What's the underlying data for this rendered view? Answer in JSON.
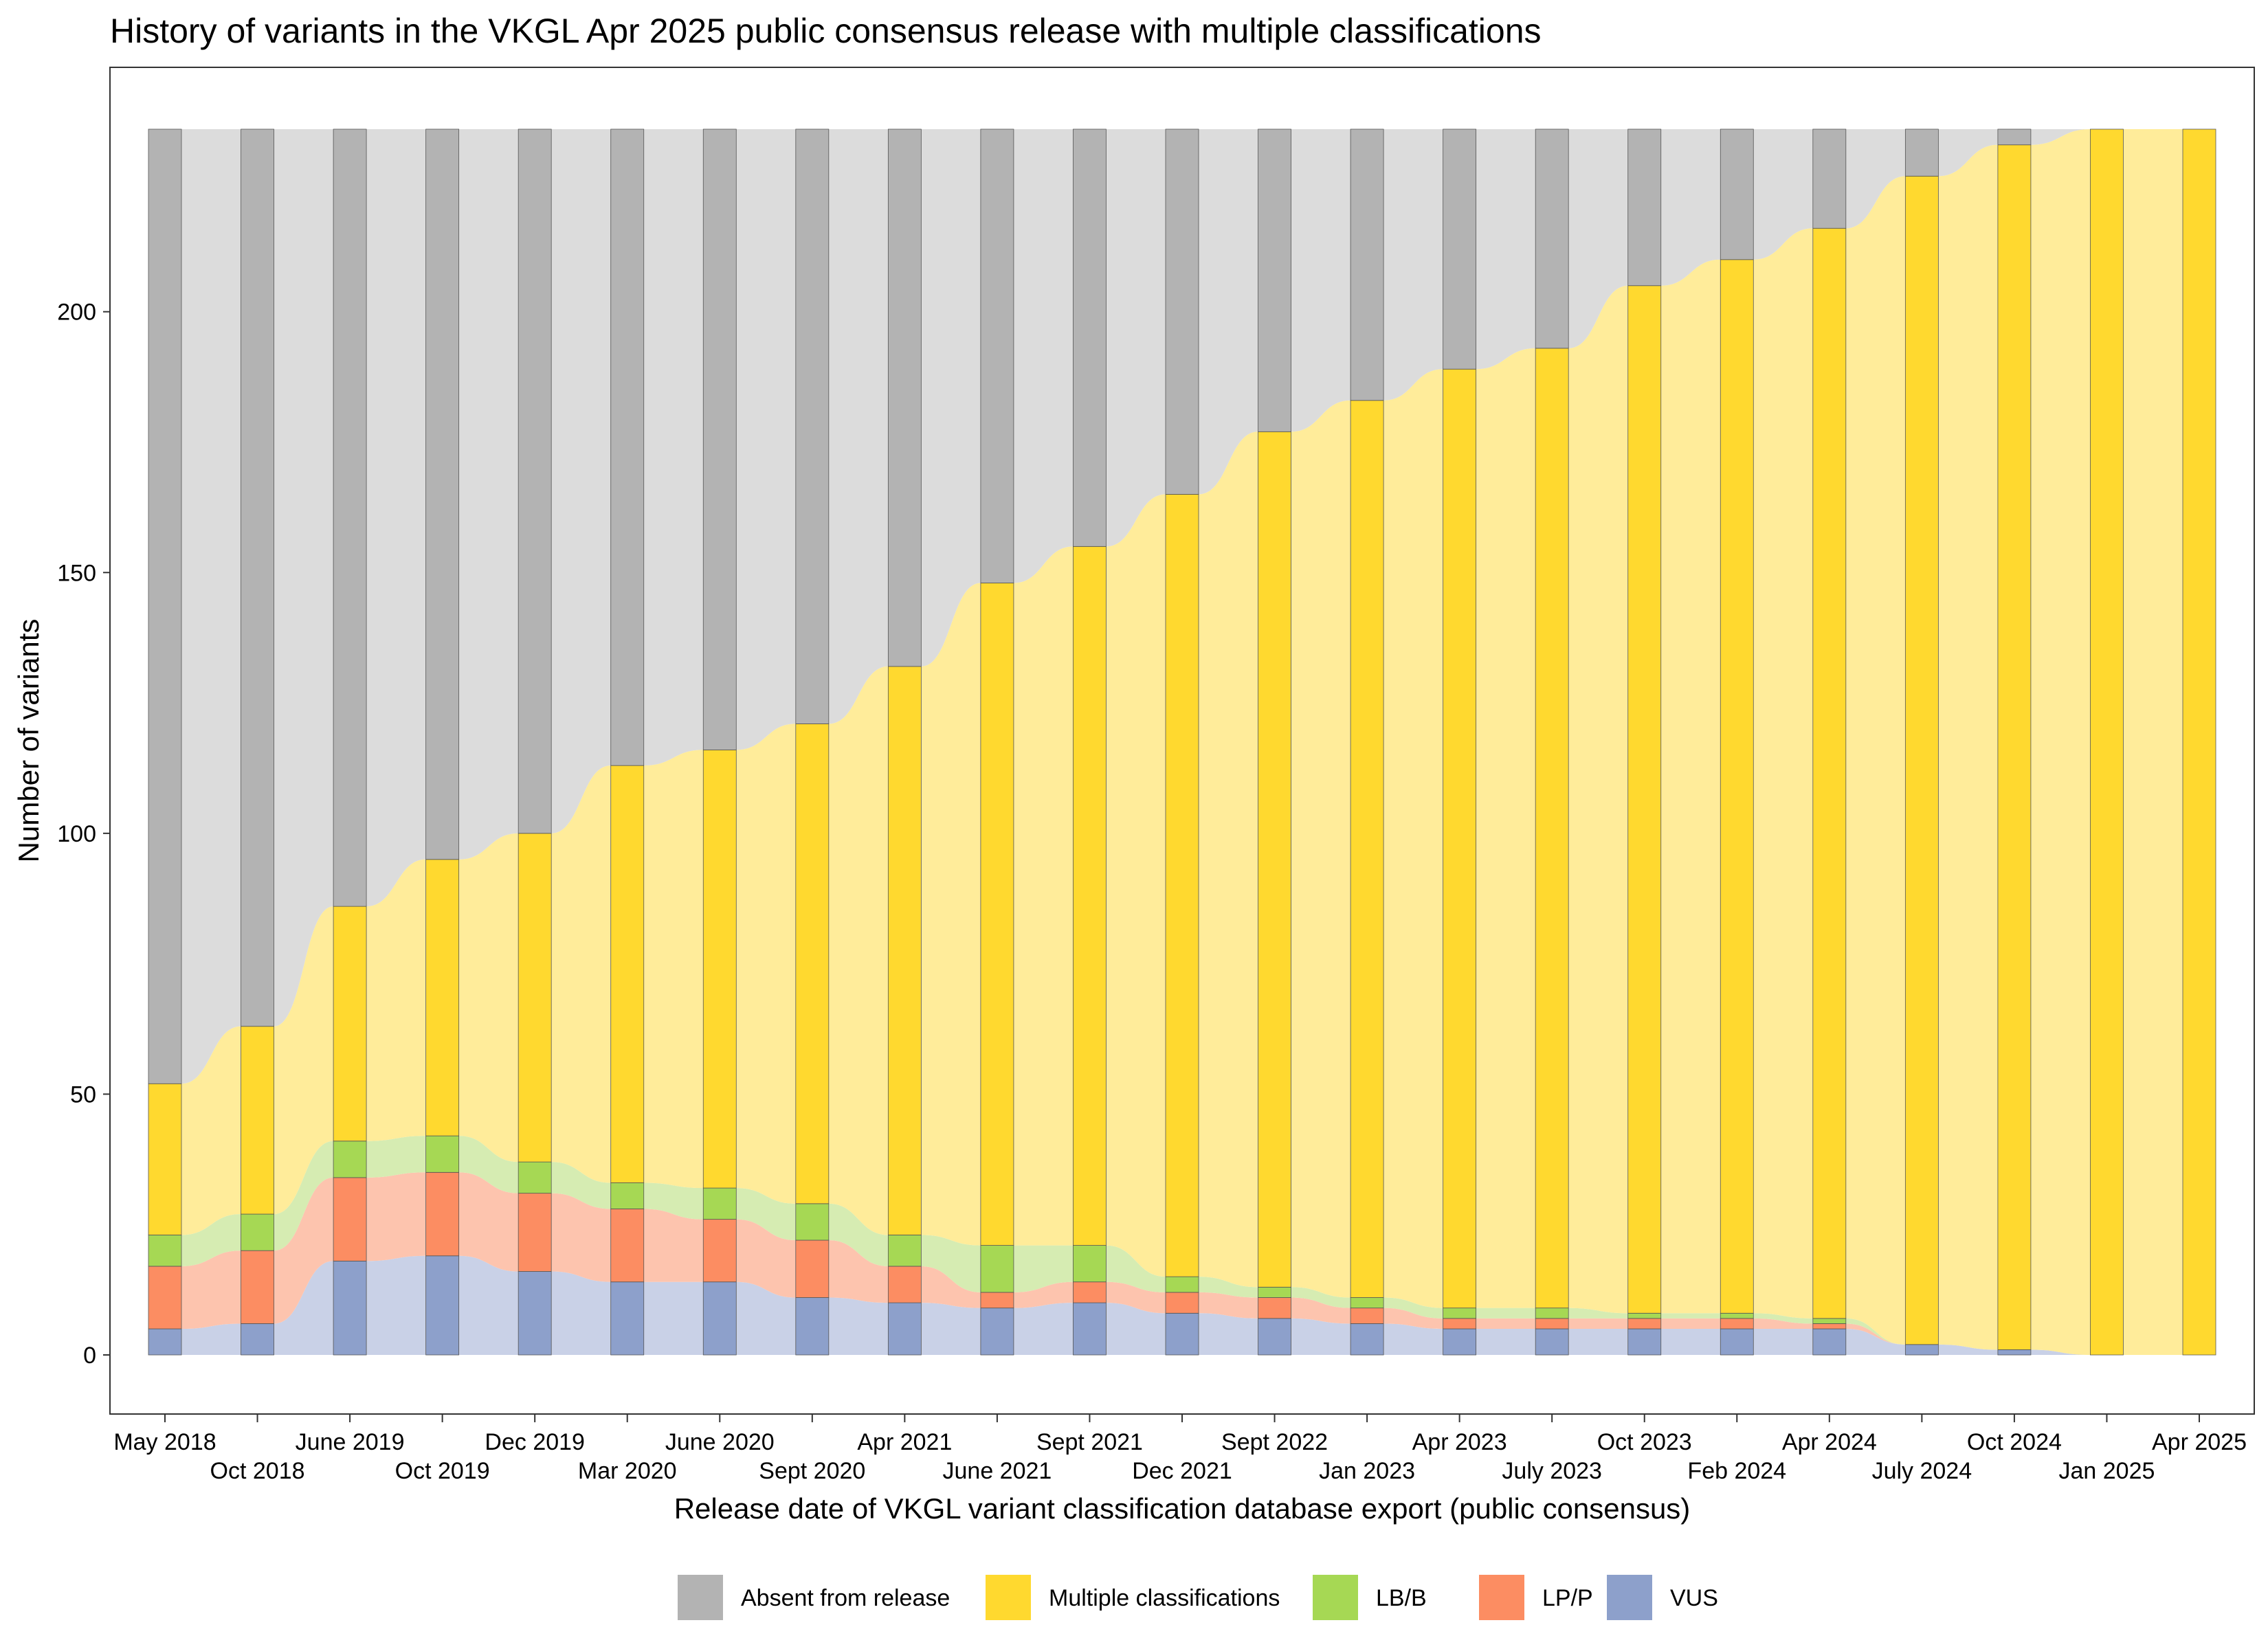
{
  "chart_data": {
    "type": "alluvial",
    "title": "History of variants in the VKGL Apr 2025 public consensus release with multiple classifications",
    "xlabel": "Release date of VKGL variant classification database export (public consensus)",
    "ylabel": "Number of variants",
    "ylim": [
      0,
      235
    ],
    "yticks": [
      0,
      50,
      100,
      150,
      200
    ],
    "categories": [
      "May 2018",
      "Oct 2018",
      "June 2019",
      "Oct 2019",
      "Dec 2019",
      "Mar 2020",
      "June 2020",
      "Sept 2020",
      "Apr 2021",
      "June 2021",
      "Sept 2021",
      "Dec 2021",
      "Sept 2022",
      "Jan 2023",
      "Apr 2023",
      "July 2023",
      "Oct 2023",
      "Feb 2024",
      "Apr 2024",
      "July 2024",
      "Oct 2024",
      "Jan 2025",
      "Apr 2025"
    ],
    "series": [
      {
        "name": "VUS",
        "color": "#8DA0CB",
        "values": [
          5,
          6,
          18,
          19,
          16,
          14,
          14,
          11,
          10,
          9,
          10,
          8,
          7,
          6,
          5,
          5,
          5,
          5,
          5,
          2,
          1,
          0,
          0
        ]
      },
      {
        "name": "LP/P",
        "color": "#FC8D62",
        "values": [
          12,
          14,
          16,
          16,
          15,
          14,
          12,
          11,
          7,
          3,
          4,
          4,
          4,
          3,
          2,
          2,
          2,
          2,
          1,
          0,
          0,
          0,
          0
        ]
      },
      {
        "name": "LB/B",
        "color": "#A6D854",
        "values": [
          6,
          7,
          7,
          7,
          6,
          5,
          6,
          7,
          6,
          9,
          7,
          3,
          2,
          2,
          2,
          2,
          1,
          1,
          1,
          0,
          0,
          0,
          0
        ]
      },
      {
        "name": "Multiple classifications",
        "color": "#FFD92F",
        "values": [
          29,
          36,
          45,
          53,
          63,
          80,
          84,
          92,
          109,
          127,
          134,
          150,
          164,
          172,
          180,
          184,
          197,
          202,
          209,
          224,
          231,
          235,
          235
        ]
      },
      {
        "name": "Absent from release",
        "color": "#B3B3B3",
        "values": [
          183,
          172,
          149,
          140,
          135,
          122,
          119,
          114,
          103,
          87,
          80,
          70,
          58,
          52,
          46,
          42,
          30,
          25,
          19,
          9,
          3,
          0,
          0
        ]
      }
    ],
    "legend": {
      "position": "bottom",
      "entries": [
        "Absent from release",
        "Multiple classifications",
        "LB/B",
        "LP/P",
        "VUS"
      ]
    }
  }
}
